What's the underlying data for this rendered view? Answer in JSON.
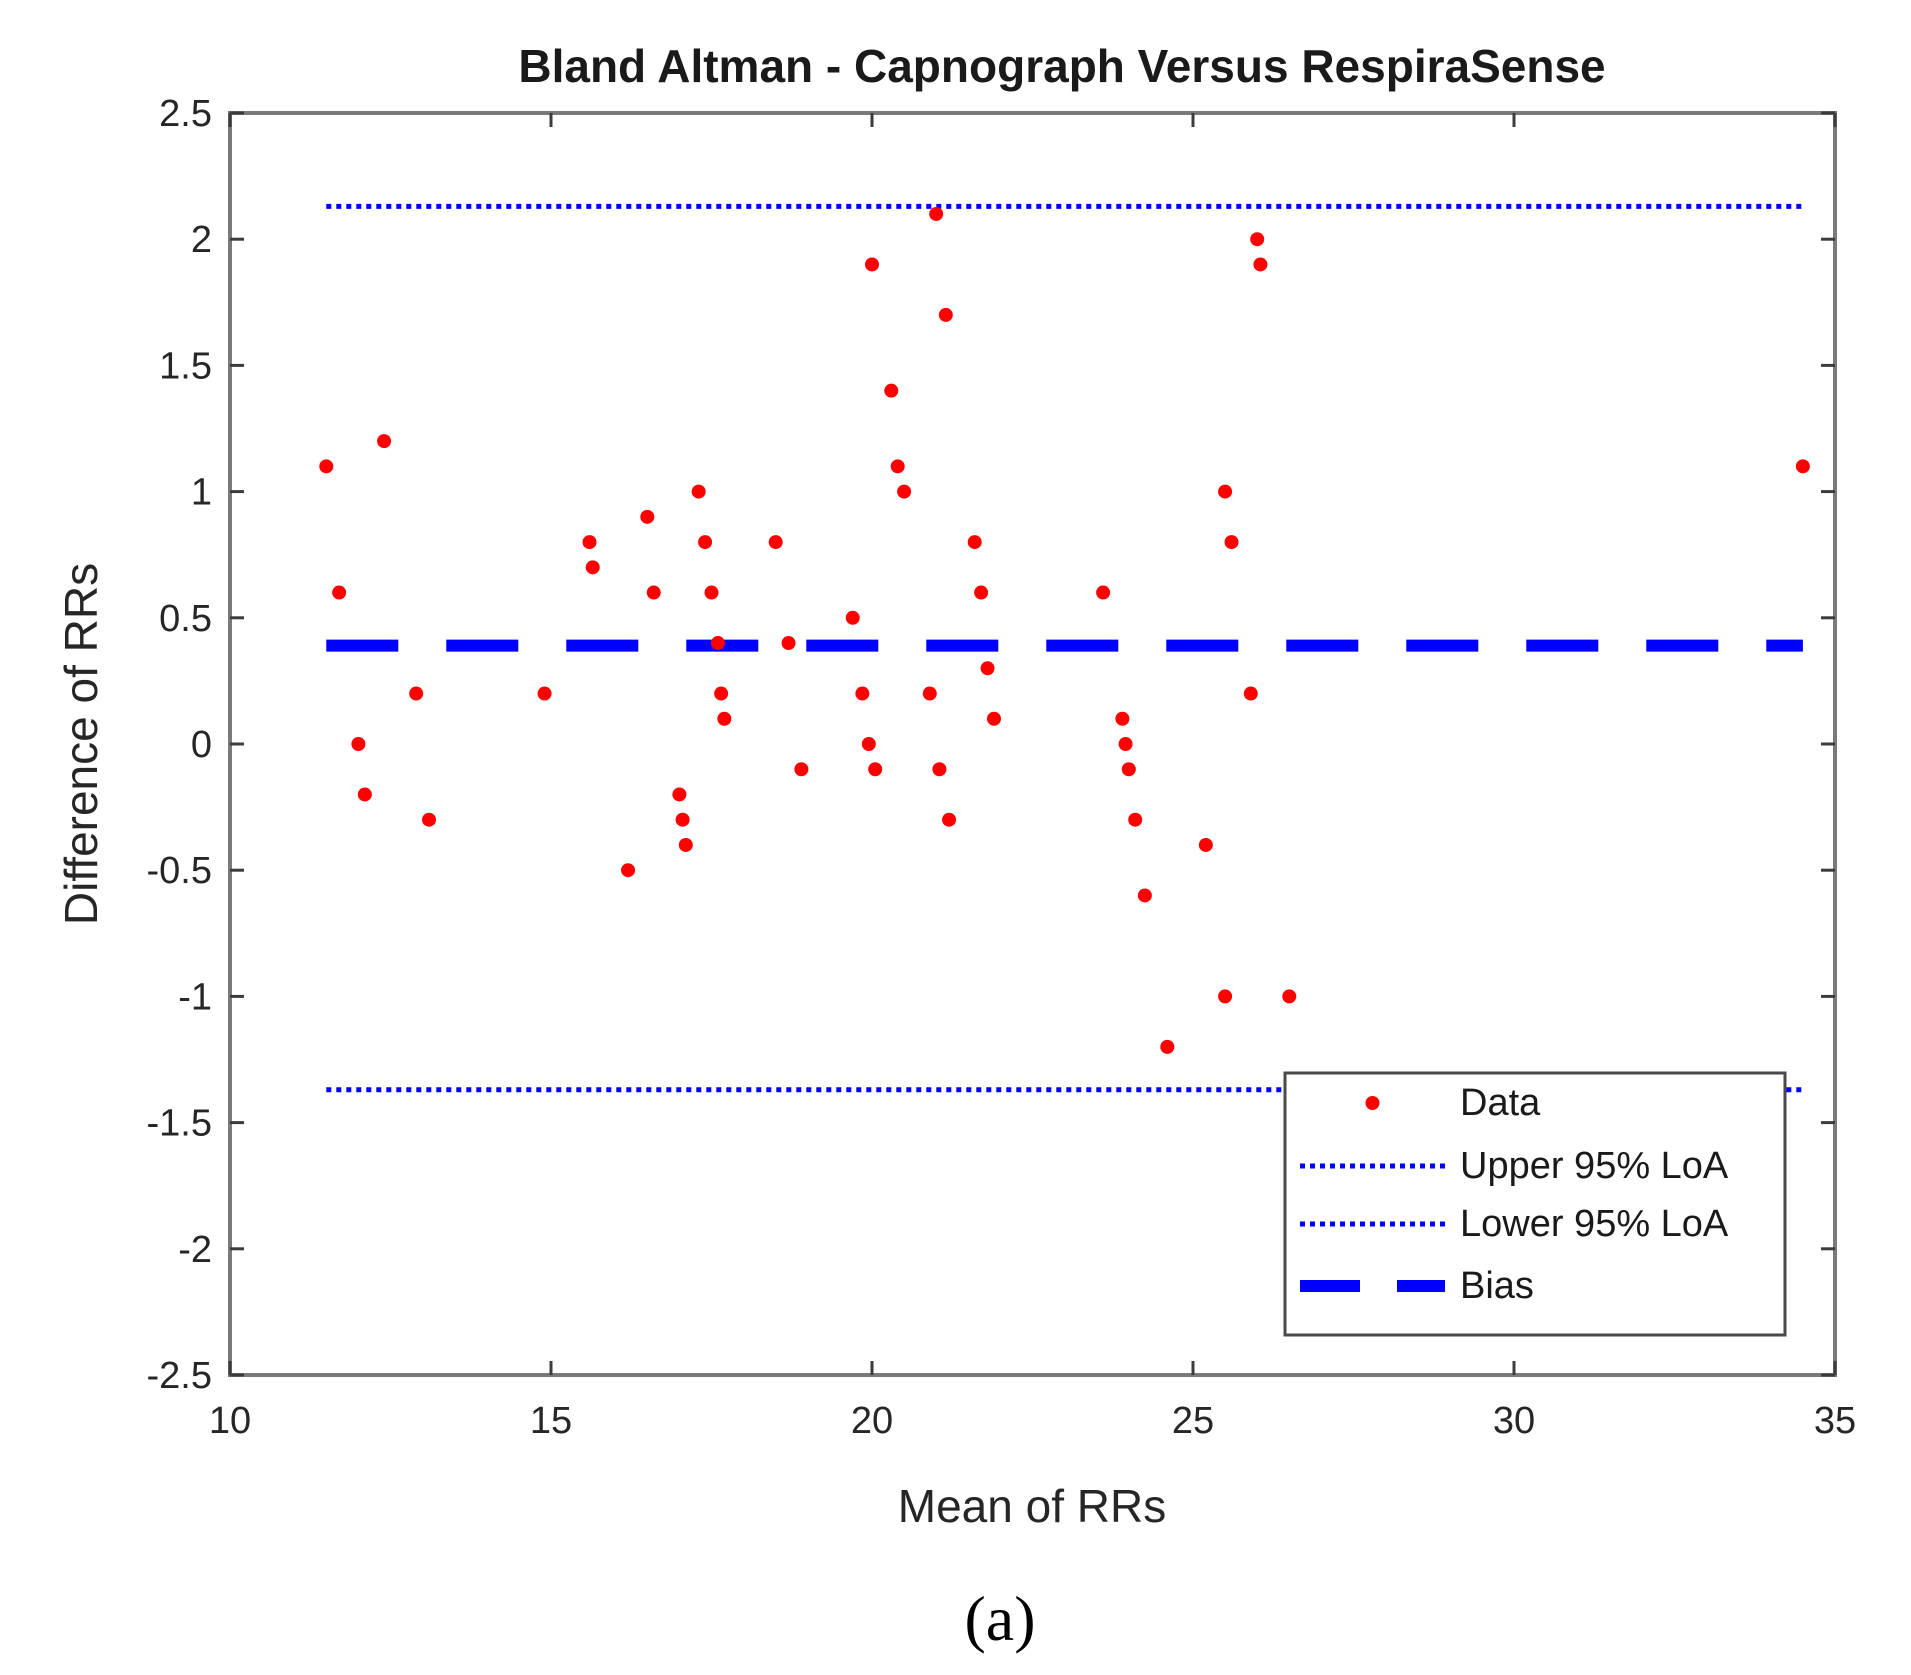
{
  "chart_data": {
    "type": "scatter",
    "title": "Bland Altman - Capnograph Versus RespiraSense",
    "xlabel": "Mean of RRs",
    "ylabel": "Difference of RRs",
    "xlim": [
      10,
      35
    ],
    "ylim": [
      -2.5,
      2.5
    ],
    "xticks": [
      10,
      15,
      20,
      25,
      30,
      35
    ],
    "xtick_labels": [
      "10",
      "15",
      "20",
      "25",
      "30",
      "35"
    ],
    "yticks": [
      2.5,
      2,
      1.5,
      1,
      0.5,
      0,
      -0.5,
      -1,
      -1.5,
      -2,
      -2.5
    ],
    "ytick_labels": [
      "2.5",
      "2",
      "1.5",
      "1",
      "0.5",
      "0",
      "-0.5",
      "-1",
      "-1.5",
      "-2",
      "-2.5"
    ],
    "grid": false,
    "legend_position": "bottom-right",
    "series": [
      {
        "name": "Data",
        "style": "markers",
        "color": "#ff0000",
        "points": [
          [
            11.5,
            1.1
          ],
          [
            11.7,
            0.6
          ],
          [
            12.0,
            0.0
          ],
          [
            12.1,
            -0.2
          ],
          [
            12.4,
            1.2
          ],
          [
            12.9,
            0.2
          ],
          [
            13.1,
            -0.3
          ],
          [
            14.9,
            0.2
          ],
          [
            15.6,
            0.8
          ],
          [
            15.65,
            0.7
          ],
          [
            16.2,
            -0.5
          ],
          [
            16.5,
            0.9
          ],
          [
            16.6,
            0.6
          ],
          [
            17.0,
            -0.2
          ],
          [
            17.05,
            -0.3
          ],
          [
            17.1,
            -0.4
          ],
          [
            17.3,
            1.0
          ],
          [
            17.4,
            0.8
          ],
          [
            17.5,
            0.6
          ],
          [
            17.6,
            0.4
          ],
          [
            17.65,
            0.2
          ],
          [
            17.7,
            0.1
          ],
          [
            18.5,
            0.8
          ],
          [
            18.7,
            0.4
          ],
          [
            18.9,
            -0.1
          ],
          [
            19.7,
            0.5
          ],
          [
            19.85,
            0.2
          ],
          [
            19.95,
            0.0
          ],
          [
            20.0,
            1.9
          ],
          [
            20.05,
            -0.1
          ],
          [
            20.3,
            1.4
          ],
          [
            20.4,
            1.1
          ],
          [
            20.5,
            1.0
          ],
          [
            20.9,
            0.2
          ],
          [
            21.0,
            2.1
          ],
          [
            21.05,
            -0.1
          ],
          [
            21.15,
            1.7
          ],
          [
            21.2,
            -0.3
          ],
          [
            21.6,
            0.8
          ],
          [
            21.7,
            0.6
          ],
          [
            21.8,
            0.3
          ],
          [
            21.9,
            0.1
          ],
          [
            23.6,
            0.6
          ],
          [
            23.9,
            0.1
          ],
          [
            23.95,
            0.0
          ],
          [
            24.0,
            -0.1
          ],
          [
            24.1,
            -0.3
          ],
          [
            24.25,
            -0.6
          ],
          [
            24.6,
            -1.2
          ],
          [
            25.2,
            -0.4
          ],
          [
            25.5,
            1.0
          ],
          [
            25.5,
            -1.0
          ],
          [
            25.6,
            0.8
          ],
          [
            25.9,
            0.2
          ],
          [
            26.0,
            2.0
          ],
          [
            26.05,
            1.9
          ],
          [
            26.5,
            -1.0
          ],
          [
            34.5,
            1.1
          ]
        ]
      },
      {
        "name": "Upper 95% LoA",
        "style": "dotted",
        "color": "#0000ff",
        "y": 2.13,
        "x_range": [
          11.5,
          34.5
        ]
      },
      {
        "name": "Lower 95% LoA",
        "style": "dotted",
        "color": "#0000ff",
        "y": -1.37,
        "x_range": [
          11.5,
          34.5
        ]
      },
      {
        "name": "Bias",
        "style": "dashed",
        "color": "#0000ff",
        "y": 0.39,
        "x_range": [
          11.5,
          34.5
        ]
      }
    ],
    "caption": "(a)"
  }
}
